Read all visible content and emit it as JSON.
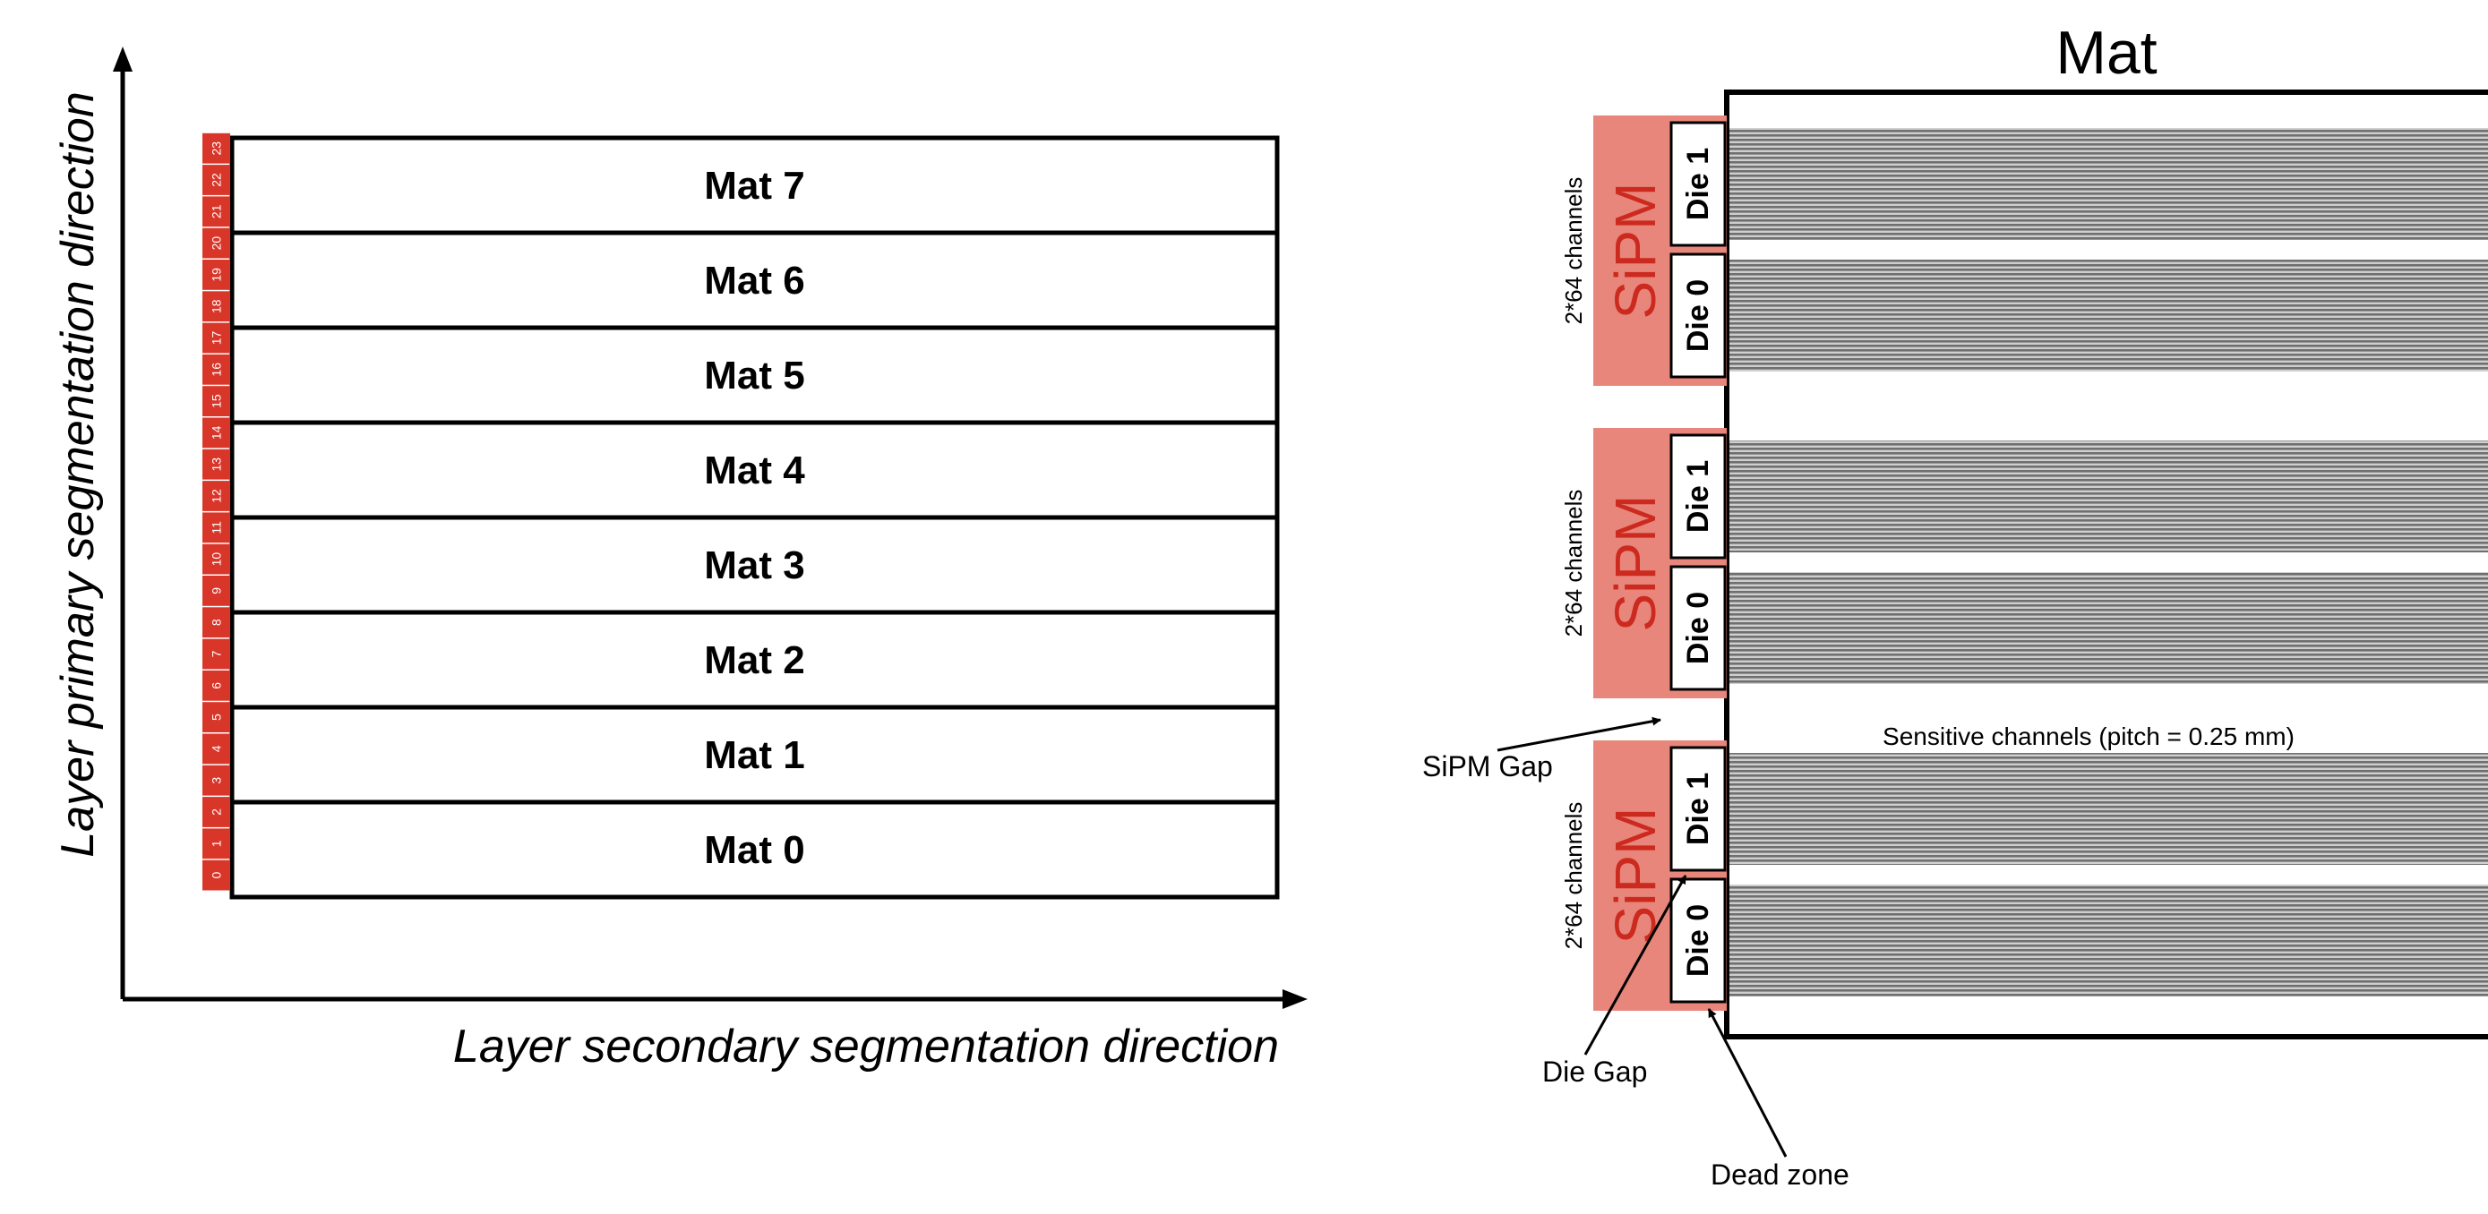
{
  "left_diagram": {
    "y_axis_label": "Layer primary segmentation direction",
    "x_axis_label": "Layer secondary segmentation direction",
    "mats": [
      "Mat 7",
      "Mat 6",
      "Mat 5",
      "Mat 4",
      "Mat 3",
      "Mat 2",
      "Mat 1",
      "Mat 0"
    ],
    "channel_indices": [
      "0",
      "1",
      "2",
      "3",
      "4",
      "5",
      "6",
      "7",
      "8",
      "9",
      "10",
      "11",
      "12",
      "13",
      "14",
      "15",
      "16",
      "17",
      "18",
      "19",
      "20",
      "21",
      "22",
      "23"
    ]
  },
  "right_diagram": {
    "title": "Mat",
    "sipm_groups": [
      {
        "sipm_label": "SiPM",
        "channels_label": "2*64 channels",
        "dies": [
          "Die 1",
          "Die 0"
        ]
      },
      {
        "sipm_label": "SiPM",
        "channels_label": "2*64 channels",
        "dies": [
          "Die 1",
          "Die 0"
        ]
      },
      {
        "sipm_label": "SiPM",
        "channels_label": "2*64 channels",
        "dies": [
          "Die 1",
          "Die 0"
        ]
      }
    ],
    "annotations": {
      "sensitive_channels": "Sensitive channels (pitch = 0.25 mm)",
      "sipm_gap": "SiPM Gap",
      "die_gap": "Die Gap",
      "dead_zone": "Dead zone"
    }
  },
  "colors": {
    "sipm_fill": "#e8867c",
    "sipm_text": "#cc2a1f",
    "channel_red": "#d9362a",
    "line": "#000000",
    "channel_fiber": "#8a8a8a"
  }
}
